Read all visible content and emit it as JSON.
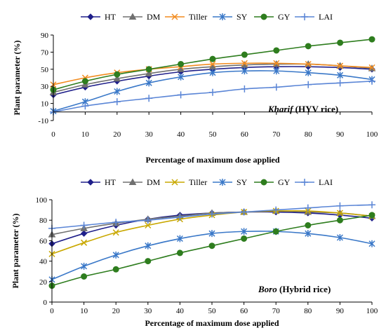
{
  "chart_data": [
    {
      "type": "line",
      "annotation_italic": "Kharif",
      "annotation_rest": " (HYV rice)",
      "xlabel": "Percentage  of maximum dose applied",
      "ylabel": "Plant parameter (%)",
      "xlim": [
        0,
        100
      ],
      "ylim": [
        -10,
        90
      ],
      "x": [
        0,
        10,
        20,
        30,
        40,
        50,
        60,
        70,
        80,
        90,
        100
      ],
      "xticks": [
        0,
        10,
        20,
        30,
        40,
        50,
        60,
        70,
        80,
        90,
        100
      ],
      "yticks": [
        -10,
        10,
        30,
        50,
        70,
        90
      ],
      "legend_position": "top",
      "grid": false,
      "series": [
        {
          "name": "HT",
          "color": "#1f1f8a",
          "marker": "diamond",
          "values": [
            20,
            29,
            36,
            42,
            47,
            50,
            52,
            53,
            53,
            52,
            50
          ]
        },
        {
          "name": "DM",
          "color": "#707070",
          "marker": "triangle",
          "values": [
            23,
            32,
            39,
            45,
            50,
            53,
            55,
            56,
            56,
            54,
            51
          ]
        },
        {
          "name": "Tiller",
          "color": "#f28c1f",
          "marker": "x",
          "values": [
            32,
            40,
            46,
            50,
            53,
            56,
            57,
            57,
            56,
            54,
            52
          ]
        },
        {
          "name": "SY",
          "color": "#3a78c8",
          "marker": "star",
          "values": [
            1,
            12,
            24,
            34,
            41,
            46,
            48,
            48,
            46,
            43,
            38
          ]
        },
        {
          "name": "GY",
          "color": "#2e7d1e",
          "marker": "circle",
          "values": [
            26,
            36,
            44,
            50,
            56,
            62,
            67,
            72,
            77,
            81,
            85
          ]
        },
        {
          "name": "LAI",
          "color": "#5a85d6",
          "marker": "plus",
          "values": [
            0,
            7,
            12,
            16,
            20,
            23,
            27,
            29,
            32,
            34,
            36
          ]
        }
      ]
    },
    {
      "type": "line",
      "annotation_italic": "Boro",
      "annotation_rest": " (Hybrid rice)",
      "xlabel": "Percentage  of maximum dose applied",
      "ylabel": "Plant parameter (%)",
      "xlim": [
        0,
        100
      ],
      "ylim": [
        0,
        100
      ],
      "x": [
        0,
        10,
        20,
        30,
        40,
        50,
        60,
        70,
        80,
        90,
        100
      ],
      "xticks": [
        0,
        10,
        20,
        30,
        40,
        50,
        60,
        70,
        80,
        90,
        100
      ],
      "yticks": [
        0,
        20,
        40,
        60,
        80,
        100
      ],
      "legend_position": "top",
      "grid": false,
      "series": [
        {
          "name": "HT",
          "color": "#1f1f8a",
          "marker": "diamond",
          "values": [
            57,
            67,
            75,
            81,
            85,
            87,
            88,
            88,
            87,
            85,
            82
          ]
        },
        {
          "name": "DM",
          "color": "#707070",
          "marker": "triangle",
          "values": [
            66,
            72,
            77,
            81,
            84,
            87,
            88,
            89,
            88,
            87,
            84
          ]
        },
        {
          "name": "Tiller",
          "color": "#c9a800",
          "marker": "x",
          "values": [
            47,
            58,
            68,
            75,
            81,
            85,
            88,
            89,
            89,
            87,
            84
          ]
        },
        {
          "name": "SY",
          "color": "#3a78c8",
          "marker": "star",
          "values": [
            22,
            35,
            46,
            55,
            62,
            67,
            69,
            69,
            67,
            63,
            57
          ]
        },
        {
          "name": "GY",
          "color": "#2e7d1e",
          "marker": "circle",
          "values": [
            16,
            25,
            32,
            40,
            48,
            55,
            62,
            69,
            75,
            80,
            85
          ]
        },
        {
          "name": "LAI",
          "color": "#5a85d6",
          "marker": "plus",
          "values": [
            72,
            75,
            78,
            80,
            83,
            86,
            88,
            90,
            92,
            94,
            95
          ]
        }
      ]
    }
  ]
}
